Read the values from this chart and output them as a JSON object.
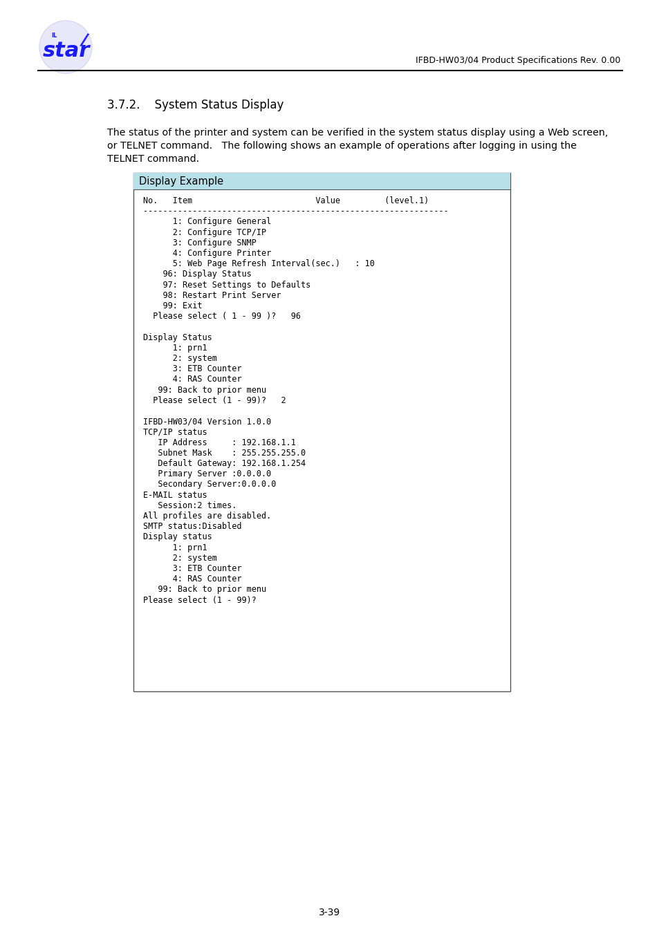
{
  "page_bg": "#ffffff",
  "header_line_color": "#000000",
  "header_text": "IFBD-HW03/04 Product Specifications Rev. 0.00",
  "section_title": "3.7.2.    System Status Display",
  "body_text_line1": "The status of the printer and system can be verified in the system status display using a Web screen,",
  "body_text_line2": "or TELNET command.   The following shows an example of operations after logging in using the",
  "body_text_line3": "TELNET command.",
  "box_header_bg": "#b8e0e8",
  "box_header_text": "Display Example",
  "box_border_color": "#555555",
  "box_bg": "#ffffff",
  "footer_text": "3-39",
  "display_lines": [
    "No.   Item                         Value         (level.1)",
    "--------------------------------------------------------------",
    "      1: Configure General",
    "      2: Configure TCP/IP",
    "      3: Configure SNMP",
    "      4: Configure Printer",
    "      5: Web Page Refresh Interval(sec.)   : 10",
    "    96: Display Status",
    "    97: Reset Settings to Defaults",
    "    98: Restart Print Server",
    "    99: Exit",
    "  Please select ( 1 - 99 )?   96",
    "",
    "Display Status",
    "      1: prn1",
    "      2: system",
    "      3: ETB Counter",
    "      4: RAS Counter",
    "   99: Back to prior menu",
    "  Please select (1 - 99)?   2",
    "",
    "IFBD-HW03/04 Version 1.0.0",
    "TCP/IP status",
    "   IP Address     : 192.168.1.1",
    "   Subnet Mask    : 255.255.255.0",
    "   Default Gateway: 192.168.1.254",
    "   Primary Server :0.0.0.0",
    "   Secondary Server:0.0.0.0",
    "E-MAIL status",
    "   Session:2 times.",
    "All profiles are disabled.",
    "SMTP status:Disabled",
    "Display status",
    "      1: prn1",
    "      2: system",
    "      3: ETB Counter",
    "      4: RAS Counter",
    "   99: Back to prior menu",
    "Please select (1 - 99)?"
  ],
  "star_logo_color": "#1a1aff",
  "logo_circle_color": "#ddddff",
  "fig_width": 9.54,
  "fig_height": 13.51,
  "dpi": 100
}
